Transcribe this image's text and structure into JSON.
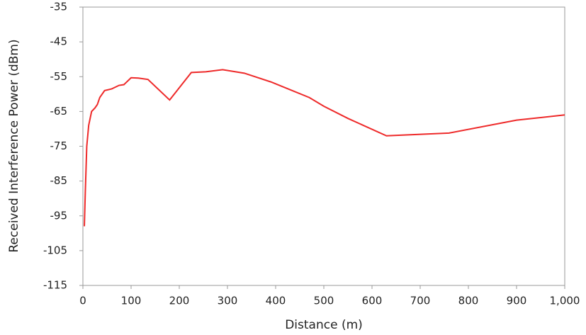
{
  "chart_data": {
    "type": "line",
    "x_label": "Distance (m)",
    "y_label": "Received Interference Power (dBm)",
    "x": [
      3,
      5,
      8,
      12,
      18,
      25,
      30,
      35,
      45,
      60,
      75,
      85,
      100,
      115,
      135,
      180,
      225,
      255,
      290,
      335,
      390,
      470,
      500,
      550,
      630,
      760,
      900,
      1000
    ],
    "series": [
      {
        "color": "#ee2a2a",
        "values": [
          -98,
          -88,
          -75,
          -69,
          -65,
          -64,
          -63,
          -61,
          -59,
          -58.5,
          -57.5,
          -57.3,
          -55.3,
          -55.4,
          -55.8,
          -61.7,
          -53.8,
          -53.6,
          -53,
          -54,
          -56.5,
          -61,
          -63.5,
          -67,
          -72,
          -71.2,
          -67.5,
          -66
        ]
      }
    ],
    "xlim": [
      0,
      1000
    ],
    "xticks": [
      0,
      100,
      200,
      300,
      400,
      500,
      600,
      700,
      800,
      900,
      {
        "value": 1000,
        "label": "1,000"
      }
    ],
    "ylim": [
      -115,
      -35
    ],
    "yticks": [
      -35,
      -45,
      -55,
      -65,
      -75,
      -85,
      -95,
      -105,
      -115
    ],
    "grid": false
  }
}
